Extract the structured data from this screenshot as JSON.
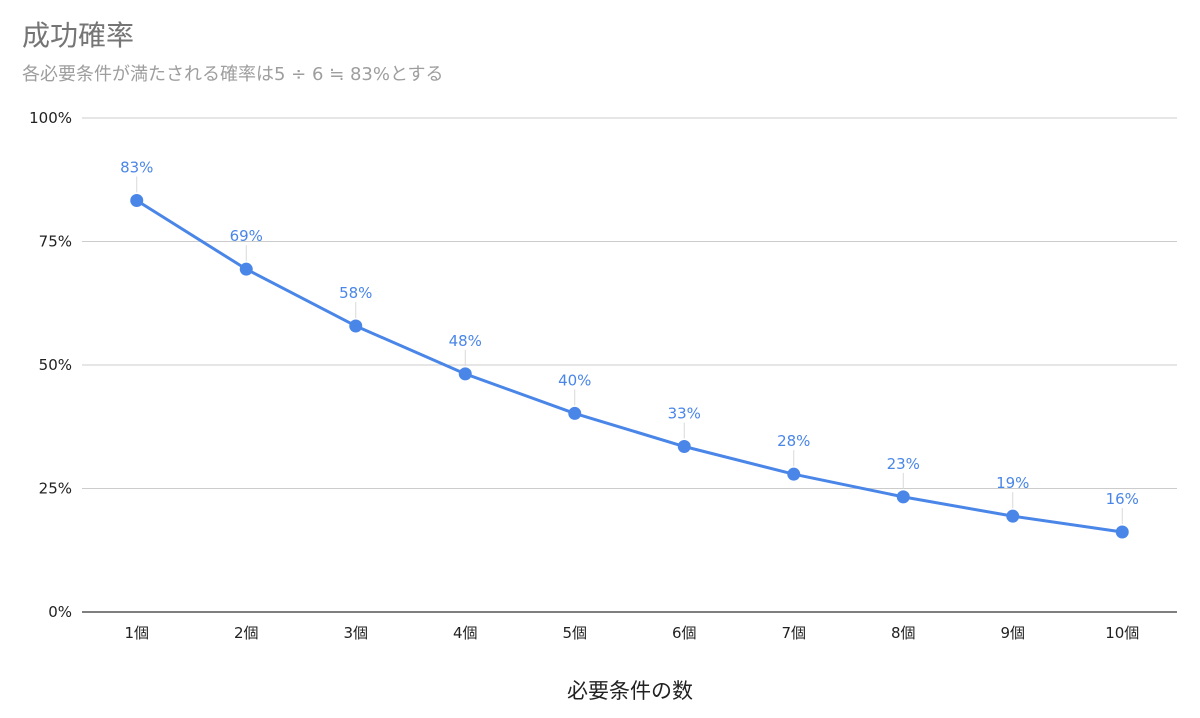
{
  "chart_data": {
    "type": "line",
    "title": "成功確率",
    "subtitle": "各必要条件が満たされる確率は5 ÷ 6 ≒ 83%とする",
    "xlabel": "必要条件の数",
    "ylabel": "",
    "categories": [
      "1個",
      "2個",
      "3個",
      "4個",
      "5個",
      "6個",
      "7個",
      "8個",
      "9個",
      "10個"
    ],
    "series": [
      {
        "values": [
          83.3,
          69.4,
          57.9,
          48.2,
          40.2,
          33.5,
          27.9,
          23.3,
          19.4,
          16.2
        ],
        "labels": [
          "83%",
          "69%",
          "58%",
          "48%",
          "40%",
          "33%",
          "28%",
          "23%",
          "19%",
          "16%"
        ],
        "color": "#4a86e8"
      }
    ],
    "ylim": [
      0,
      100
    ],
    "yticks": [
      0,
      25,
      50,
      75,
      100
    ],
    "ytick_labels": [
      "0%",
      "25%",
      "50%",
      "75%",
      "100%"
    ],
    "grid": true,
    "legend": "none",
    "gridline_color": "#cccccc",
    "axis_color": "#333333"
  }
}
